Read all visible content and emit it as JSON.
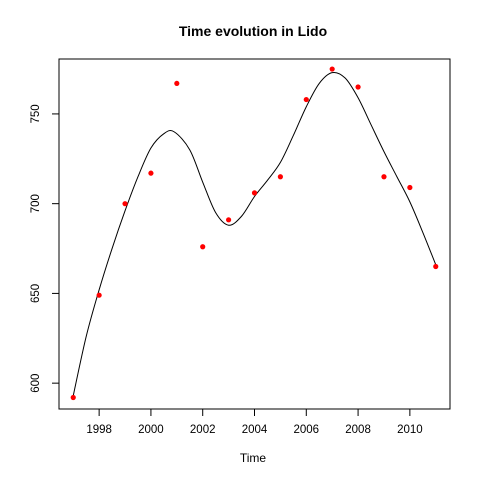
{
  "chart_data": {
    "type": "scatter",
    "title": "Time evolution in Lido",
    "xlabel": "Time",
    "ylabel": "",
    "xlim": [
      1996.45,
      2011.55
    ],
    "ylim": [
      585.6,
      780.6
    ],
    "xticks": [
      1998,
      2000,
      2002,
      2004,
      2006,
      2008,
      2010
    ],
    "yticks": [
      600,
      650,
      700,
      750
    ],
    "grid": false,
    "legend": "none",
    "point_color": "#ff0000",
    "line_color": "#000000",
    "series": [
      {
        "type": "scatter",
        "x": [
          1997,
          1998,
          1999,
          2000,
          2001,
          2002,
          2003,
          2004,
          2005,
          2006,
          2007,
          2008,
          2009,
          2010,
          2011
        ],
        "y": [
          592,
          649,
          700,
          717,
          767,
          676,
          691,
          706,
          715,
          758,
          775,
          765,
          715,
          709,
          665
        ]
      },
      {
        "type": "line",
        "x": [
          1997,
          1997.5,
          1998,
          1998.5,
          1999,
          1999.5,
          2000,
          2000.5,
          2000.9,
          2001.5,
          2002,
          2002.5,
          2003,
          2003.5,
          2004,
          2004.5,
          2005,
          2005.5,
          2006,
          2006.5,
          2007,
          2007.5,
          2008,
          2008.5,
          2009,
          2009.5,
          2010,
          2010.5,
          2011
        ],
        "y": [
          593,
          626,
          652,
          675,
          696,
          715,
          731,
          739,
          740,
          730,
          712,
          695,
          688,
          693,
          704,
          713,
          723,
          738,
          754,
          767,
          773,
          770,
          759,
          744,
          729,
          715,
          701,
          684,
          666
        ]
      }
    ]
  }
}
